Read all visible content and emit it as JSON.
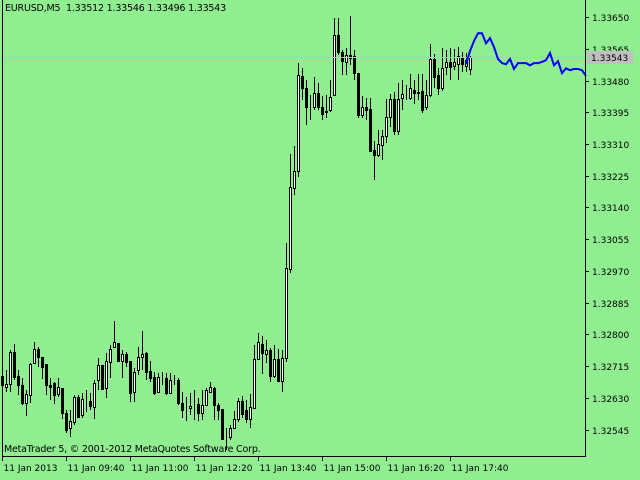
{
  "header": {
    "symbol": "EURUSD",
    "timeframe": "M5",
    "ohlc_text": "1.33512 1.33546 1.33496 1.33543"
  },
  "footer": {
    "copyright": "MetaTrader 5, © 2001-2012 MetaQuotes Software Corp."
  },
  "colors": {
    "background": "#90ee90",
    "bull_body": "#ffffff",
    "bear_body": "#000000",
    "candle_outline": "#000000",
    "forecast_line": "#0000ff",
    "bid_line": "#c0c0c0",
    "bid_label_text": "#ffffff"
  },
  "chart_data": {
    "type": "candlestick",
    "title": "EURUSD,M5",
    "ylim": [
      1.32474,
      1.33696
    ],
    "grid": false,
    "y_ticks": [
      "1.33650",
      "1.33565",
      "1.33480",
      "1.33395",
      "1.33310",
      "1.33225",
      "1.33140",
      "1.33055",
      "1.32970",
      "1.32885",
      "1.32800",
      "1.32715",
      "1.32630",
      "1.32545"
    ],
    "x_ticks": [
      "11 Jan 2013",
      "11 Jan 09:40",
      "11 Jan 11:00",
      "11 Jan 12:20",
      "11 Jan 13:40",
      "11 Jan 15:00",
      "11 Jan 16:20",
      "11 Jan 17:40"
    ],
    "bid_price": "1.33543",
    "candles_ohlc": [
      [
        1.32688,
        1.32699,
        1.32656,
        1.32664
      ],
      [
        1.32658,
        1.32704,
        1.32645,
        1.32666
      ],
      [
        1.32666,
        1.32758,
        1.32645,
        1.32752
      ],
      [
        1.32752,
        1.32774,
        1.32677,
        1.32685
      ],
      [
        1.32688,
        1.32704,
        1.32637,
        1.32664
      ],
      [
        1.32664,
        1.32683,
        1.3261,
        1.32616
      ],
      [
        1.32616,
        1.3265,
        1.32581,
        1.3264
      ],
      [
        1.32637,
        1.32723,
        1.32616,
        1.3272
      ],
      [
        1.32723,
        1.32779,
        1.32723,
        1.3276
      ],
      [
        1.3276,
        1.32766,
        1.32712,
        1.32739
      ],
      [
        1.32739,
        1.32739,
        1.3268,
        1.32712
      ],
      [
        1.3272,
        1.3272,
        1.32637,
        1.32664
      ],
      [
        1.32664,
        1.32683,
        1.32624,
        1.32658
      ],
      [
        1.32669,
        1.32672,
        1.32613,
        1.32637
      ],
      [
        1.3264,
        1.32683,
        1.32632,
        1.32658
      ],
      [
        1.32656,
        1.32656,
        1.32573,
        1.32589
      ],
      [
        1.32589,
        1.32597,
        1.32535,
        1.32543
      ],
      [
        1.32549,
        1.32597,
        1.32525,
        1.32567
      ],
      [
        1.32565,
        1.32637,
        1.32557,
        1.32632
      ],
      [
        1.32632,
        1.32637,
        1.32578,
        1.32578
      ],
      [
        1.32584,
        1.32642,
        1.32576,
        1.32627
      ],
      [
        1.32621,
        1.3265,
        1.32592,
        1.32621
      ],
      [
        1.32621,
        1.32642,
        1.32597,
        1.32608
      ],
      [
        1.32605,
        1.32677,
        1.32573,
        1.32669
      ],
      [
        1.32677,
        1.32736,
        1.3265,
        1.32717
      ],
      [
        1.32717,
        1.32717,
        1.3265,
        1.32653
      ],
      [
        1.32656,
        1.3275,
        1.32629,
        1.32728
      ],
      [
        1.32725,
        1.32771,
        1.32683,
        1.3276
      ],
      [
        1.32766,
        1.32835,
        1.32763,
        1.32779
      ],
      [
        1.32776,
        1.32776,
        1.32725,
        1.32728
      ],
      [
        1.32728,
        1.32758,
        1.32683,
        1.32747
      ],
      [
        1.32747,
        1.32752,
        1.32712,
        1.32725
      ],
      [
        1.32728,
        1.32728,
        1.32618,
        1.32642
      ],
      [
        1.32645,
        1.32709,
        1.32618,
        1.32699
      ],
      [
        1.32704,
        1.32766,
        1.32691,
        1.32739
      ],
      [
        1.32739,
        1.32809,
        1.32704,
        1.32747
      ],
      [
        1.3275,
        1.32752,
        1.32677,
        1.32699
      ],
      [
        1.32701,
        1.32728,
        1.32672,
        1.32683
      ],
      [
        1.32685,
        1.32699,
        1.32637,
        1.32642
      ],
      [
        1.32645,
        1.32696,
        1.32642,
        1.32685
      ],
      [
        1.32685,
        1.32699,
        1.32664,
        1.32685
      ],
      [
        1.32683,
        1.32696,
        1.32637,
        1.32642
      ],
      [
        1.32642,
        1.32696,
        1.3264,
        1.32677
      ],
      [
        1.32677,
        1.32691,
        1.32664,
        1.32677
      ],
      [
        1.32677,
        1.32683,
        1.3261,
        1.32616
      ],
      [
        1.32616,
        1.32645,
        1.32576,
        1.32597
      ],
      [
        1.32602,
        1.32632,
        1.32567,
        1.32602
      ],
      [
        1.32602,
        1.32642,
        1.32584,
        1.32608
      ],
      [
        1.32613,
        1.3265,
        1.3257,
        1.32613
      ],
      [
        1.32613,
        1.32629,
        1.32567,
        1.32589
      ],
      [
        1.32589,
        1.3265,
        1.3257,
        1.3261
      ],
      [
        1.3261,
        1.32656,
        1.32608,
        1.3265
      ],
      [
        1.32645,
        1.32672,
        1.32642,
        1.32658
      ],
      [
        1.32656,
        1.32658,
        1.3257,
        1.3261
      ],
      [
        1.3261,
        1.32616,
        1.3257,
        1.32597
      ],
      [
        1.326,
        1.326,
        1.32516,
        1.32519
      ],
      [
        1.32525,
        1.32549,
        1.3249,
        1.32525
      ],
      [
        1.32525,
        1.32557,
        1.32516,
        1.32549
      ],
      [
        1.32549,
        1.32594,
        1.32546,
        1.32573
      ],
      [
        1.32573,
        1.32629,
        1.32565,
        1.32621
      ],
      [
        1.32621,
        1.32634,
        1.32576,
        1.32586
      ],
      [
        1.32597,
        1.32624,
        1.32562,
        1.32573
      ],
      [
        1.32573,
        1.3264,
        1.32549,
        1.32605
      ],
      [
        1.32602,
        1.32771,
        1.326,
        1.32733
      ],
      [
        1.32733,
        1.32803,
        1.32731,
        1.32779
      ],
      [
        1.32774,
        1.32795,
        1.32693,
        1.3275
      ],
      [
        1.32747,
        1.32784,
        1.32723,
        1.32758
      ],
      [
        1.32758,
        1.32763,
        1.32672,
        1.32688
      ],
      [
        1.32688,
        1.32771,
        1.32683,
        1.32733
      ],
      [
        1.32733,
        1.3276,
        1.32672,
        1.32675
      ],
      [
        1.32675,
        1.32758,
        1.32645,
        1.32736
      ],
      [
        1.32736,
        1.33044,
        1.32725,
        1.32977
      ],
      [
        1.32975,
        1.33283,
        1.32964,
        1.33195
      ],
      [
        1.33193,
        1.33305,
        1.33173,
        1.33237
      ],
      [
        1.33237,
        1.33527,
        1.33221,
        1.33495
      ],
      [
        1.33492,
        1.33513,
        1.33428,
        1.3346
      ],
      [
        1.3346,
        1.33481,
        1.33361,
        1.33409
      ],
      [
        1.33406,
        1.33441,
        1.33374,
        1.33406
      ],
      [
        1.33409,
        1.33489,
        1.33401,
        1.33446
      ],
      [
        1.33446,
        1.33473,
        1.33401,
        1.33409
      ],
      [
        1.33409,
        1.33438,
        1.33374,
        1.3339
      ],
      [
        1.33396,
        1.33441,
        1.33379,
        1.33398
      ],
      [
        1.33401,
        1.33481,
        1.33396,
        1.33436
      ],
      [
        1.33441,
        1.33647,
        1.33438,
        1.33602
      ],
      [
        1.33602,
        1.33647,
        1.33548,
        1.33556
      ],
      [
        1.33556,
        1.33562,
        1.33495,
        1.33532
      ],
      [
        1.3353,
        1.33567,
        1.33495,
        1.33548
      ],
      [
        1.33548,
        1.33653,
        1.33522,
        1.3354
      ],
      [
        1.33546,
        1.33562,
        1.33481,
        1.335
      ],
      [
        1.335,
        1.335,
        1.33379,
        1.33387
      ],
      [
        1.33387,
        1.33438,
        1.33379,
        1.33409
      ],
      [
        1.33409,
        1.33433,
        1.33374,
        1.33401
      ],
      [
        1.33403,
        1.33433,
        1.33288,
        1.33291
      ],
      [
        1.33294,
        1.33318,
        1.33213,
        1.3328
      ],
      [
        1.3328,
        1.33347,
        1.33275,
        1.3331
      ],
      [
        1.33307,
        1.33347,
        1.33267,
        1.33331
      ],
      [
        1.33331,
        1.3343,
        1.33312,
        1.33382
      ],
      [
        1.33382,
        1.33444,
        1.33355,
        1.3343
      ],
      [
        1.3343,
        1.33449,
        1.33334,
        1.33344
      ],
      [
        1.33344,
        1.33473,
        1.33334,
        1.3343
      ],
      [
        1.33433,
        1.33481,
        1.33401,
        1.33444
      ],
      [
        1.33441,
        1.33468,
        1.33428,
        1.33441
      ],
      [
        1.33433,
        1.33497,
        1.33428,
        1.3346
      ],
      [
        1.33454,
        1.33481,
        1.33417,
        1.33446
      ],
      [
        1.33449,
        1.33497,
        1.33428,
        1.33446
      ],
      [
        1.33452,
        1.33497,
        1.33393,
        1.33401
      ],
      [
        1.33409,
        1.33481,
        1.33401,
        1.33441
      ],
      [
        1.33441,
        1.33578,
        1.33436,
        1.33538
      ],
      [
        1.33538,
        1.33551,
        1.3346,
        1.33489
      ],
      [
        1.33495,
        1.33513,
        1.33441,
        1.3346
      ],
      [
        1.3346,
        1.33567,
        1.33452,
        1.33513
      ],
      [
        1.33516,
        1.33562,
        1.33495,
        1.3353
      ],
      [
        1.3353,
        1.33567,
        1.33481,
        1.33516
      ],
      [
        1.33519,
        1.33564,
        1.33508,
        1.3353
      ],
      [
        1.33524,
        1.3357,
        1.33481,
        1.33546
      ],
      [
        1.33543,
        1.33556,
        1.33503,
        1.33524
      ],
      [
        1.33519,
        1.33554,
        1.33503,
        1.33535
      ],
      [
        1.33512,
        1.33546,
        1.33496,
        1.33543
      ]
    ],
    "forecast_line": [
      1.33524,
      1.33559,
      1.33586,
      1.33607,
      1.33607,
      1.3358,
      1.33594,
      1.3357,
      1.33538,
      1.33527,
      1.33524,
      1.33538,
      1.33511,
      1.33527,
      1.33527,
      1.33527,
      1.33521,
      1.33527,
      1.33527,
      1.3353,
      1.33535,
      1.33554,
      1.33521,
      1.33532,
      1.335,
      1.33513,
      1.33508,
      1.33511,
      1.33511,
      1.33508,
      1.33492
    ]
  }
}
